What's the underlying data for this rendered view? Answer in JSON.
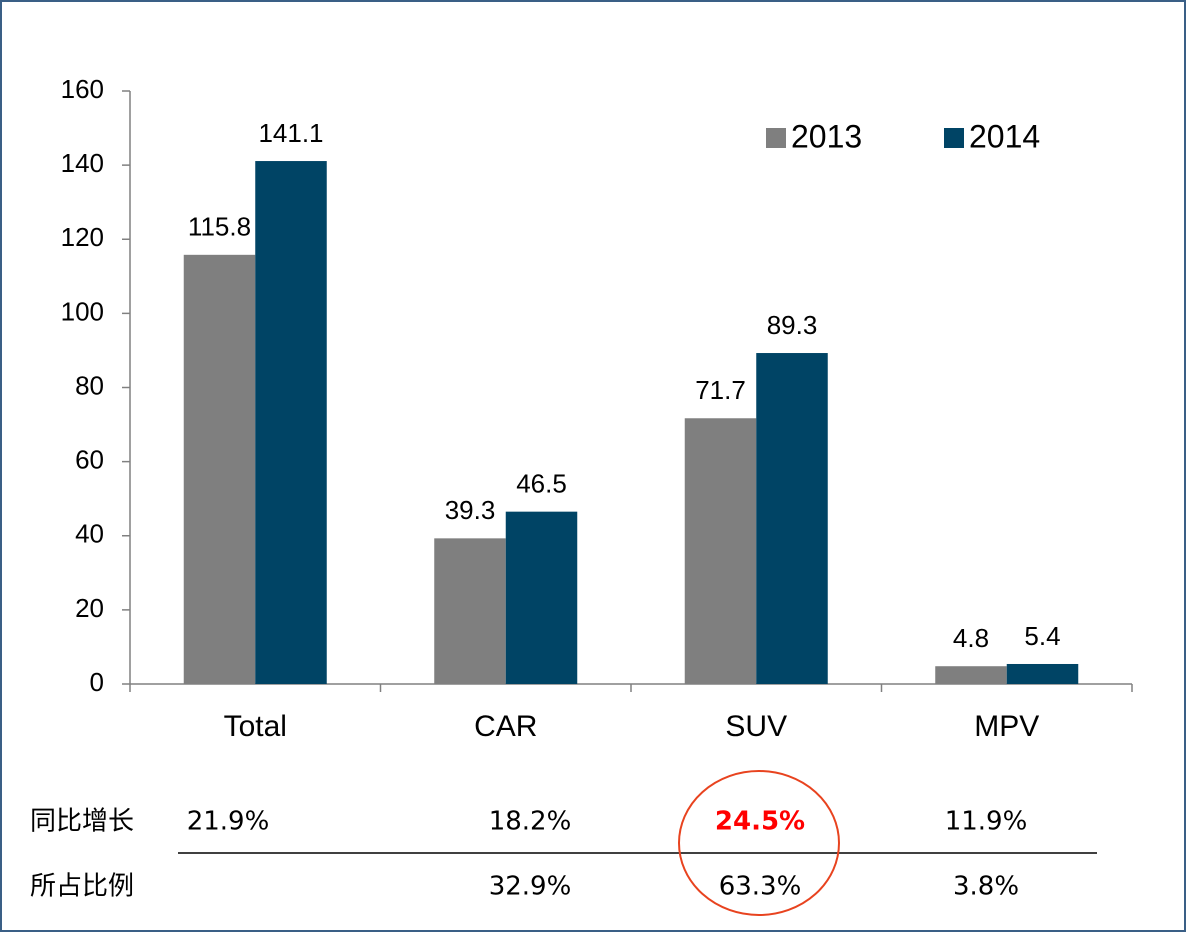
{
  "chart_data": {
    "type": "bar",
    "categories": [
      "Total",
      "CAR",
      "SUV",
      "MPV"
    ],
    "series": [
      {
        "name": "2013",
        "color": "#7f7f7f",
        "values": [
          115.8,
          39.3,
          71.7,
          4.8
        ]
      },
      {
        "name": "2014",
        "color": "#004465",
        "values": [
          141.1,
          46.5,
          89.3,
          5.4
        ]
      }
    ],
    "ylim": [
      0,
      160
    ],
    "yticks": [
      0,
      20,
      40,
      60,
      80,
      100,
      120,
      140,
      160
    ],
    "legend": "top-right"
  },
  "table": {
    "rows": [
      {
        "label": "同比增长",
        "cells": [
          "21.9%",
          "18.2%",
          "24.5%",
          "11.9%"
        ]
      },
      {
        "label": "所占比例",
        "cells": [
          null,
          "32.9%",
          "63.3%",
          "3.8%"
        ]
      }
    ]
  }
}
